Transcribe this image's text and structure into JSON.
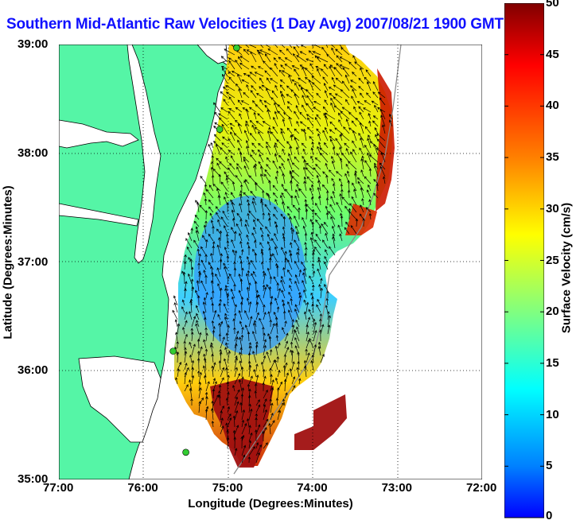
{
  "title": "Southern Mid-Atlantic Raw Velocities (1 Day Avg) 2007/08/21 1900 GMT",
  "axes": {
    "xlabel": "Longitude (Degrees:Minutes)",
    "ylabel": "Latitude (Degrees:Minutes)",
    "xticks": [
      "77:00",
      "76:00",
      "75:00",
      "74:00",
      "73:00",
      "72:00"
    ],
    "yticks": [
      "39:00",
      "38:00",
      "37:00",
      "36:00",
      "35:00"
    ],
    "xlim": [
      -77,
      -72
    ],
    "ylim": [
      35,
      39
    ]
  },
  "colorbar": {
    "label": "Surface Velocity (cm/s)",
    "ticks": [
      "50",
      "45",
      "40",
      "35",
      "30",
      "25",
      "20",
      "15",
      "10",
      "5",
      "0"
    ],
    "range": [
      0,
      50
    ]
  },
  "colors": {
    "land": "#55f5a6",
    "water": "#ffffff",
    "title": "#1010ff",
    "station": "#33cc33"
  },
  "stations": [
    {
      "lon": -74.9,
      "lat": 38.97
    },
    {
      "lon": -75.1,
      "lat": 38.22
    },
    {
      "lon": -75.65,
      "lat": 36.18
    },
    {
      "lon": -75.5,
      "lat": 35.25
    }
  ]
}
